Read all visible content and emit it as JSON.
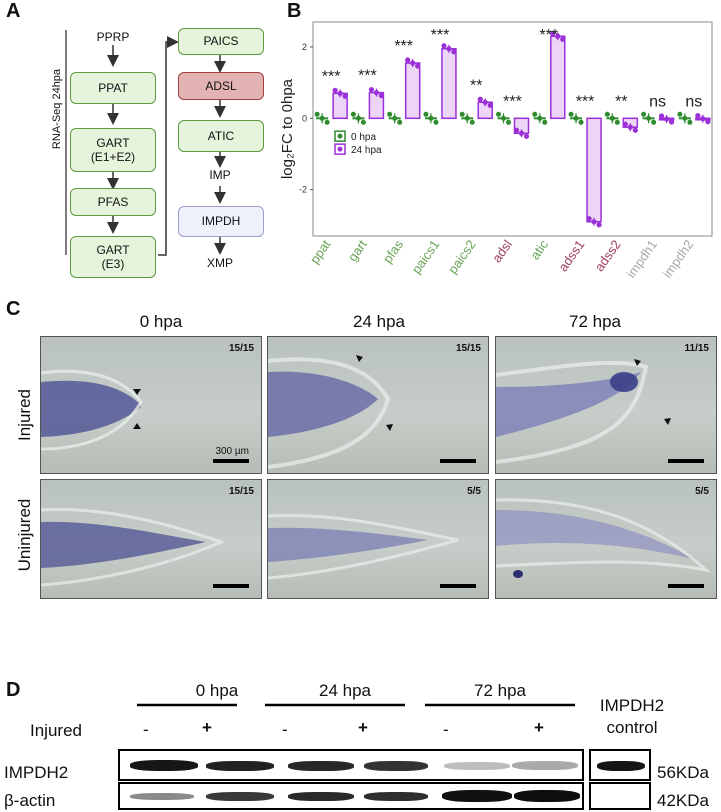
{
  "panel_a": {
    "letter": "A",
    "side_label": "RNA-Seq 24hpa",
    "nodes_left": [
      "PPRP",
      "PPAT",
      "GART\n(E1+E2)",
      "PFAS",
      "GART\n(E3)"
    ],
    "nodes_right": [
      "PAICS",
      "ADSL",
      "ATIC",
      "IMP",
      "IMPDH",
      "XMP"
    ]
  },
  "panel_b": {
    "letter": "B",
    "chart_data": {
      "type": "bar",
      "ylabel": "log₂FC to 0hpa",
      "ylim": [
        -3.3,
        2.7
      ],
      "yticks": [
        -2,
        0,
        2
      ],
      "categories": [
        "ppat",
        "gart",
        "pfas",
        "paics1",
        "paics2",
        "adsl",
        "atic",
        "adss1",
        "adss2",
        "impdh1",
        "impdh2"
      ],
      "category_colors": [
        "#6aa457",
        "#6aa457",
        "#6aa457",
        "#6aa457",
        "#6aa457",
        "#a0405a",
        "#6aa457",
        "#a0405a",
        "#a0405a",
        "#a8a8a8",
        "#a8a8a8"
      ],
      "significance": [
        "***",
        "***",
        "***",
        "***",
        "**",
        "***",
        "***",
        "***",
        "**",
        "ns",
        "ns"
      ],
      "series": [
        {
          "name": "0 hpa",
          "color": "#2e8b2e",
          "values": [
            0,
            0,
            0,
            0,
            0,
            0,
            0,
            0,
            0,
            0,
            0
          ]
        },
        {
          "name": "24 hpa",
          "color": "#9b30d9",
          "values": [
            0.7,
            0.72,
            1.55,
            1.95,
            0.45,
            -0.42,
            2.3,
            -2.9,
            -0.25,
            -0.02,
            -0.01
          ]
        }
      ],
      "legend": "inside-left"
    }
  },
  "panel_c": {
    "letter": "C",
    "columns": [
      "0 hpa",
      "24 hpa",
      "72 hpa"
    ],
    "rows": [
      "Injured",
      "Uninjured"
    ],
    "counts": [
      [
        "15/15",
        "15/15",
        "11/15"
      ],
      [
        "15/15",
        "5/5",
        "5/5"
      ]
    ],
    "scale_label": "300 µm"
  },
  "panel_d": {
    "letter": "D",
    "timepoints": [
      "0 hpa",
      "24 hpa",
      "72 hpa"
    ],
    "injured_label": "Injured",
    "injured_marks": [
      "-",
      "+",
      "-",
      "+",
      "-",
      "+"
    ],
    "control_label_1": "IMPDH2",
    "control_label_2": "control",
    "rows": [
      {
        "label": "IMPDH2",
        "size": "56KDa"
      },
      {
        "label": "β-actin",
        "size": "42KDa"
      }
    ]
  }
}
